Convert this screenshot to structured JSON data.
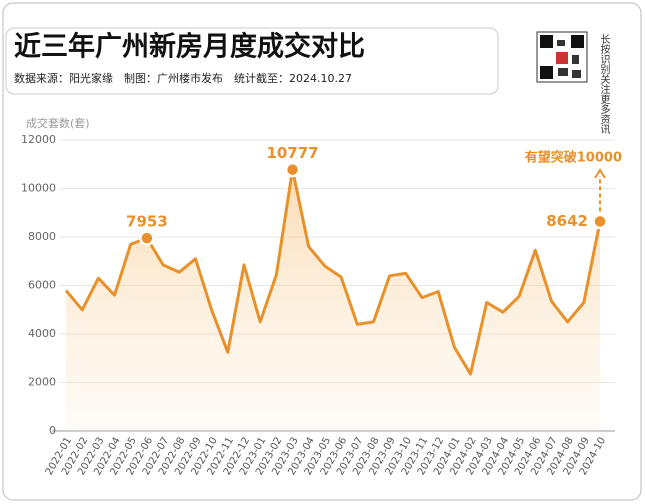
{
  "chart_data": {
    "type": "line",
    "title": "近三年广州新房月度成交对比",
    "subtitle": "数据来源：阳光家缘　制图：广州楼市发布　统计截至：2024.10.27",
    "side_note": "长按识别关注更多资讯",
    "y_label": "成交套数(套)",
    "annotation": "有望突破10000",
    "categories": [
      "2022-01",
      "2022-02",
      "2022-03",
      "2022-04",
      "2022-05",
      "2022-06",
      "2022-07",
      "2022-08",
      "2022-09",
      "2022-10",
      "2022-11",
      "2022-12",
      "2023-01",
      "2023-02",
      "2023-03",
      "2023-04",
      "2023-05",
      "2023-06",
      "2023-07",
      "2023-08",
      "2023-09",
      "2023-10",
      "2023-11",
      "2023-12",
      "2024-01",
      "2024-02",
      "2024-03",
      "2024-04",
      "2024-05",
      "2024-06",
      "2024-07",
      "2024-08",
      "2024-09",
      "2024-10"
    ],
    "series": [
      {
        "name": "成交套数",
        "color": "#e8912a",
        "values": [
          5800,
          5000,
          6300,
          5600,
          7700,
          7953,
          6850,
          6550,
          7100,
          5000,
          3250,
          6850,
          4500,
          6450,
          10777,
          7600,
          6800,
          6350,
          4400,
          4500,
          6400,
          6500,
          5500,
          5750,
          3450,
          2350,
          5300,
          4900,
          5550,
          7450,
          5350,
          4500,
          5300,
          8642
        ]
      }
    ],
    "ylim": [
      0,
      12000
    ],
    "yticks": [
      0,
      2000,
      4000,
      6000,
      8000,
      10000,
      12000
    ],
    "grid": true
  }
}
